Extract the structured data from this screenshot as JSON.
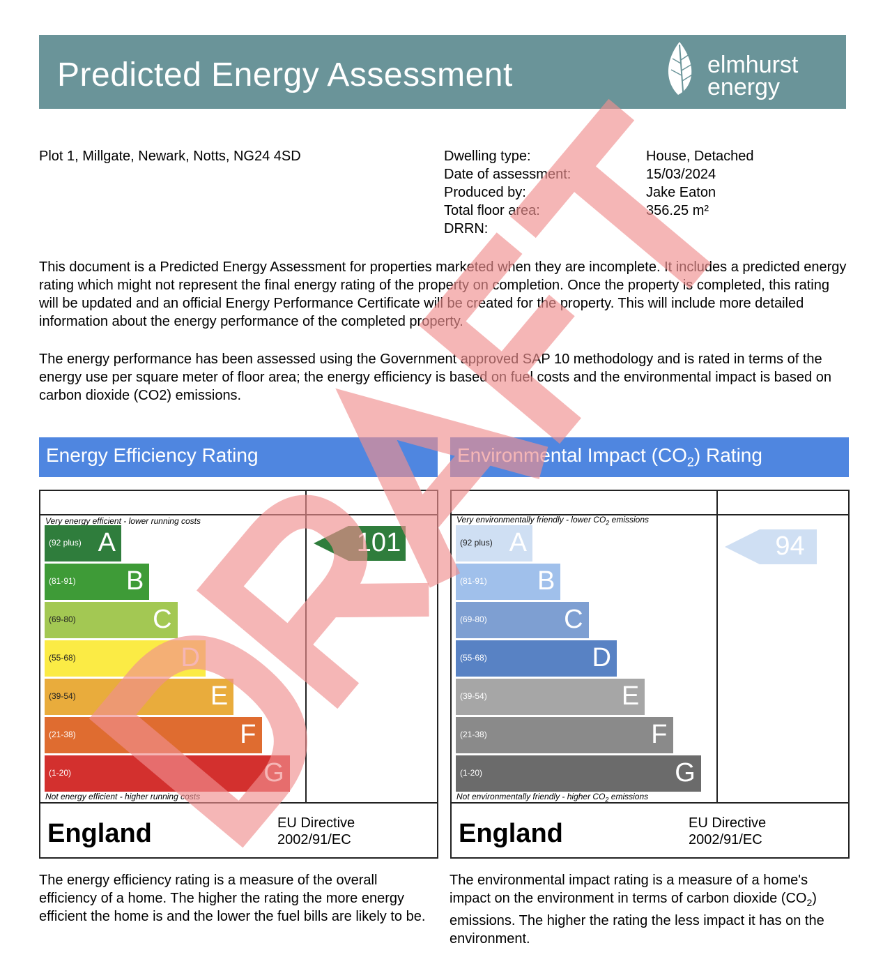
{
  "header": {
    "title": "Predicted Energy Assessment",
    "logo": "elmhurst energy",
    "logo_line1": "elmhurst",
    "logo_line2": "energy",
    "color": "#6a9499"
  },
  "address": "Plot 1, Millgate, Newark, Notts, NG24 4SD",
  "details": [
    {
      "label": "Dwelling type:",
      "value": "House, Detached"
    },
    {
      "label": "Date of assessment:",
      "value": "15/03/2024"
    },
    {
      "label": "Produced by:",
      "value": "Jake Eaton"
    },
    {
      "label": "Total floor area:",
      "value": "356.25 m²"
    },
    {
      "label": "DRRN:",
      "value": ""
    }
  ],
  "paragraphs": [
    "This document is a Predicted Energy Assessment for properties marketed when they are incomplete. It includes a predicted energy rating which might not represent the final energy rating of the property on completion. Once the property is completed, this rating will be updated and an official Energy Performance Certificate will be created for the property. This will include more detailed information about the energy performance of the completed property.",
    "The energy performance has been assessed using the Government approved SAP 10 methodology and is rated in terms of the energy use per square meter of floor area; the energy efficiency is based on fuel costs and the environmental impact is based on carbon dioxide (CO2) emissions."
  ],
  "watermark": "DRAFT",
  "energy": {
    "title": "Energy Efficiency Rating",
    "top_caption": "Very energy efficient - lower running costs",
    "bottom_caption": "Not energy efficient - higher running costs",
    "current": "101",
    "current_color": "#2f7d3c",
    "country": "England",
    "directive_1": "EU Directive",
    "directive_2": "2002/91/EC",
    "bands": [
      {
        "range": "(92 plus)",
        "letter": "A",
        "color": "#2f7d3c"
      },
      {
        "range": "(81-91)",
        "letter": "B",
        "color": "#3e9b37"
      },
      {
        "range": "(69-80)",
        "letter": "C",
        "color": "#a3c853"
      },
      {
        "range": "(55-68)",
        "letter": "D",
        "color": "#fbeb45"
      },
      {
        "range": "(39-54)",
        "letter": "E",
        "color": "#e9ac3c"
      },
      {
        "range": "(21-38)",
        "letter": "F",
        "color": "#df6c30"
      },
      {
        "range": "(1-20)",
        "letter": "G",
        "color": "#d3302e"
      }
    ],
    "description": "The energy efficiency rating is a measure of the overall efficiency of a home. The higher the rating the more energy efficient the home is and the lower the fuel bills are likely to be."
  },
  "environment": {
    "title_pre": "Environmental Impact (CO",
    "title_sub": "2",
    "title_post": ") Rating",
    "top_caption_pre": "Very environmentally friendly - lower CO",
    "top_caption_post": " emissions",
    "bottom_caption_pre": "Not environmentally friendly - higher CO",
    "bottom_caption_post": " emissions",
    "current": "94",
    "current_color": "#cfdff3",
    "country": "England",
    "directive_1": "EU Directive",
    "directive_2": "2002/91/EC",
    "bands": [
      {
        "range": "(92 plus)",
        "letter": "A",
        "color": "#cfdff3"
      },
      {
        "range": "(81-91)",
        "letter": "B",
        "color": "#a0c0eb"
      },
      {
        "range": "(69-80)",
        "letter": "C",
        "color": "#7e9fd2"
      },
      {
        "range": "(55-68)",
        "letter": "D",
        "color": "#5882c4"
      },
      {
        "range": "(39-54)",
        "letter": "E",
        "color": "#a6a6a6"
      },
      {
        "range": "(21-38)",
        "letter": "F",
        "color": "#8a8a8a"
      },
      {
        "range": "(1-20)",
        "letter": "G",
        "color": "#6b6b6b"
      }
    ],
    "description_pre": "The environmental impact rating is a measure of a home's impact on the environment in terms of carbon dioxide (CO",
    "description_post": ") emissions. The higher the rating the less impact it has on the environment."
  },
  "section_color": "#4f86e0"
}
